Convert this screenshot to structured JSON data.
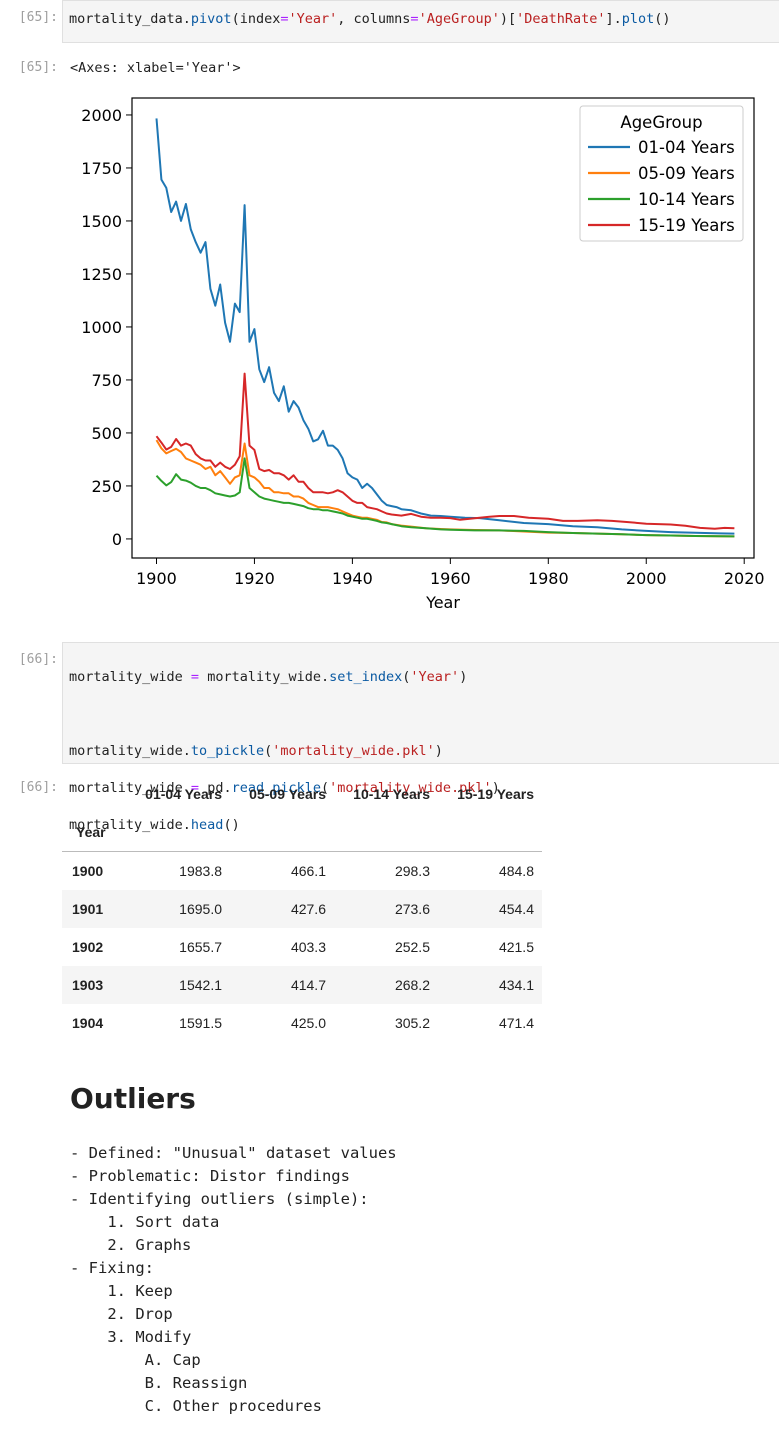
{
  "cells": [
    {
      "prompt": "[65]:",
      "out_prompt": "[65]:",
      "output_text": "<Axes: xlabel='Year'>"
    },
    {
      "prompt": "[66]:",
      "out_prompt": "[66]:"
    }
  ],
  "code65": {
    "a": "mortality_data.",
    "b": "pivot",
    "c": "(index",
    "d": "=",
    "e": "'Year'",
    "f": ", columns",
    "g": "=",
    "h": "'AgeGroup'",
    "i": ")[",
    "j": "'DeathRate'",
    "k": "].",
    "l": "plot",
    "m": "()"
  },
  "code66": {
    "l1a": "mortality_wide ",
    "l1b": "=",
    "l1c": " mortality_wide.",
    "l1d": "set_index",
    "l1e": "(",
    "l1f": "'Year'",
    "l1g": ")",
    "l2a": "mortality_wide.",
    "l2b": "to_pickle",
    "l2c": "(",
    "l2d": "'mortality_wide.pkl'",
    "l2e": ")",
    "l3a": "mortality_wide ",
    "l3b": "=",
    "l3c": " pd.",
    "l3d": "read_pickle",
    "l3e": "(",
    "l3f": "'mortality_wide.pkl'",
    "l3g": ")",
    "l4a": "mortality_wide.",
    "l4b": "head",
    "l4c": "()"
  },
  "colors": {
    "c1": "#1f77b4",
    "c2": "#ff7f0e",
    "c3": "#2ca02c",
    "c4": "#d62728"
  },
  "chart_data": {
    "type": "line",
    "title": "",
    "xlabel": "Year",
    "ylabel": "",
    "xlim": [
      1895,
      2022
    ],
    "ylim": [
      -90,
      2080
    ],
    "xticks": [
      1900,
      1920,
      1940,
      1960,
      1980,
      2000,
      2020
    ],
    "yticks": [
      0,
      250,
      500,
      750,
      1000,
      1250,
      1500,
      1750,
      2000
    ],
    "legend": {
      "title": "AgeGroup",
      "loc": "upper right"
    },
    "series": [
      {
        "name": "01-04 Years",
        "color": "#1f77b4",
        "points": [
          [
            1900,
            1983.8
          ],
          [
            1901,
            1695.0
          ],
          [
            1902,
            1655.7
          ],
          [
            1903,
            1542.1
          ],
          [
            1904,
            1591.5
          ],
          [
            1905,
            1500
          ],
          [
            1906,
            1580
          ],
          [
            1907,
            1460
          ],
          [
            1908,
            1400
          ],
          [
            1909,
            1350
          ],
          [
            1910,
            1400
          ],
          [
            1911,
            1180
          ],
          [
            1912,
            1100
          ],
          [
            1913,
            1200
          ],
          [
            1914,
            1020
          ],
          [
            1915,
            930
          ],
          [
            1916,
            1110
          ],
          [
            1917,
            1070
          ],
          [
            1918,
            1575
          ],
          [
            1919,
            930
          ],
          [
            1920,
            990
          ],
          [
            1921,
            800
          ],
          [
            1922,
            740
          ],
          [
            1923,
            810
          ],
          [
            1924,
            690
          ],
          [
            1925,
            650
          ],
          [
            1926,
            720
          ],
          [
            1927,
            600
          ],
          [
            1928,
            650
          ],
          [
            1929,
            620
          ],
          [
            1930,
            560
          ],
          [
            1931,
            520
          ],
          [
            1932,
            460
          ],
          [
            1933,
            470
          ],
          [
            1934,
            510
          ],
          [
            1935,
            440
          ],
          [
            1936,
            440
          ],
          [
            1937,
            420
          ],
          [
            1938,
            380
          ],
          [
            1939,
            310
          ],
          [
            1940,
            290
          ],
          [
            1941,
            280
          ],
          [
            1942,
            240
          ],
          [
            1943,
            260
          ],
          [
            1944,
            240
          ],
          [
            1945,
            210
          ],
          [
            1946,
            180
          ],
          [
            1947,
            160
          ],
          [
            1948,
            155
          ],
          [
            1949,
            150
          ],
          [
            1950,
            140
          ],
          [
            1952,
            135
          ],
          [
            1954,
            120
          ],
          [
            1956,
            110
          ],
          [
            1958,
            108
          ],
          [
            1960,
            105
          ],
          [
            1963,
            100
          ],
          [
            1966,
            98
          ],
          [
            1970,
            88
          ],
          [
            1975,
            75
          ],
          [
            1980,
            70
          ],
          [
            1985,
            60
          ],
          [
            1990,
            55
          ],
          [
            1995,
            45
          ],
          [
            2000,
            38
          ],
          [
            2005,
            32
          ],
          [
            2010,
            29
          ],
          [
            2015,
            26
          ],
          [
            2018,
            25
          ]
        ]
      },
      {
        "name": "05-09 Years",
        "color": "#ff7f0e",
        "points": [
          [
            1900,
            466.1
          ],
          [
            1901,
            427.6
          ],
          [
            1902,
            403.3
          ],
          [
            1903,
            414.7
          ],
          [
            1904,
            425.0
          ],
          [
            1905,
            410
          ],
          [
            1906,
            380
          ],
          [
            1907,
            370
          ],
          [
            1908,
            360
          ],
          [
            1909,
            350
          ],
          [
            1910,
            330
          ],
          [
            1911,
            340
          ],
          [
            1912,
            300
          ],
          [
            1913,
            320
          ],
          [
            1914,
            290
          ],
          [
            1915,
            260
          ],
          [
            1916,
            290
          ],
          [
            1917,
            300
          ],
          [
            1918,
            450
          ],
          [
            1919,
            300
          ],
          [
            1920,
            290
          ],
          [
            1921,
            270
          ],
          [
            1922,
            240
          ],
          [
            1923,
            240
          ],
          [
            1924,
            220
          ],
          [
            1925,
            220
          ],
          [
            1926,
            215
          ],
          [
            1927,
            215
          ],
          [
            1928,
            200
          ],
          [
            1929,
            200
          ],
          [
            1930,
            190
          ],
          [
            1931,
            170
          ],
          [
            1932,
            160
          ],
          [
            1933,
            150
          ],
          [
            1934,
            150
          ],
          [
            1935,
            150
          ],
          [
            1936,
            145
          ],
          [
            1937,
            140
          ],
          [
            1938,
            130
          ],
          [
            1939,
            120
          ],
          [
            1940,
            110
          ],
          [
            1941,
            105
          ],
          [
            1942,
            100
          ],
          [
            1943,
            100
          ],
          [
            1944,
            95
          ],
          [
            1945,
            90
          ],
          [
            1946,
            80
          ],
          [
            1947,
            78
          ],
          [
            1948,
            70
          ],
          [
            1950,
            63
          ],
          [
            1952,
            58
          ],
          [
            1955,
            50
          ],
          [
            1958,
            47
          ],
          [
            1960,
            45
          ],
          [
            1965,
            42
          ],
          [
            1970,
            40
          ],
          [
            1975,
            35
          ],
          [
            1980,
            30
          ],
          [
            1985,
            28
          ],
          [
            1990,
            25
          ],
          [
            1995,
            22
          ],
          [
            2000,
            18
          ],
          [
            2005,
            16
          ],
          [
            2010,
            14
          ],
          [
            2015,
            13
          ],
          [
            2018,
            12
          ]
        ]
      },
      {
        "name": "10-14 Years",
        "color": "#2ca02c",
        "points": [
          [
            1900,
            298.3
          ],
          [
            1901,
            273.6
          ],
          [
            1902,
            252.5
          ],
          [
            1903,
            268.2
          ],
          [
            1904,
            305.2
          ],
          [
            1905,
            280
          ],
          [
            1906,
            275
          ],
          [
            1907,
            265
          ],
          [
            1908,
            250
          ],
          [
            1909,
            240
          ],
          [
            1910,
            240
          ],
          [
            1911,
            230
          ],
          [
            1912,
            215
          ],
          [
            1913,
            210
          ],
          [
            1914,
            205
          ],
          [
            1915,
            200
          ],
          [
            1916,
            205
          ],
          [
            1917,
            220
          ],
          [
            1918,
            380
          ],
          [
            1919,
            240
          ],
          [
            1920,
            220
          ],
          [
            1921,
            200
          ],
          [
            1922,
            190
          ],
          [
            1923,
            185
          ],
          [
            1924,
            180
          ],
          [
            1925,
            175
          ],
          [
            1926,
            170
          ],
          [
            1927,
            170
          ],
          [
            1928,
            165
          ],
          [
            1929,
            160
          ],
          [
            1930,
            155
          ],
          [
            1931,
            145
          ],
          [
            1932,
            140
          ],
          [
            1933,
            140
          ],
          [
            1934,
            135
          ],
          [
            1935,
            135
          ],
          [
            1936,
            130
          ],
          [
            1937,
            125
          ],
          [
            1938,
            120
          ],
          [
            1939,
            110
          ],
          [
            1940,
            105
          ],
          [
            1941,
            100
          ],
          [
            1942,
            95
          ],
          [
            1943,
            95
          ],
          [
            1944,
            90
          ],
          [
            1945,
            85
          ],
          [
            1946,
            78
          ],
          [
            1947,
            75
          ],
          [
            1948,
            70
          ],
          [
            1950,
            60
          ],
          [
            1952,
            55
          ],
          [
            1955,
            50
          ],
          [
            1958,
            45
          ],
          [
            1960,
            43
          ],
          [
            1965,
            40
          ],
          [
            1970,
            40
          ],
          [
            1975,
            38
          ],
          [
            1980,
            32
          ],
          [
            1985,
            28
          ],
          [
            1990,
            25
          ],
          [
            1995,
            22
          ],
          [
            2000,
            18
          ],
          [
            2005,
            16
          ],
          [
            2010,
            14
          ],
          [
            2015,
            13
          ],
          [
            2018,
            12
          ]
        ]
      },
      {
        "name": "15-19 Years",
        "color": "#d62728",
        "points": [
          [
            1900,
            484.8
          ],
          [
            1901,
            454.4
          ],
          [
            1902,
            421.5
          ],
          [
            1903,
            434.1
          ],
          [
            1904,
            471.4
          ],
          [
            1905,
            440
          ],
          [
            1906,
            450
          ],
          [
            1907,
            440
          ],
          [
            1908,
            400
          ],
          [
            1909,
            380
          ],
          [
            1910,
            370
          ],
          [
            1911,
            370
          ],
          [
            1912,
            340
          ],
          [
            1913,
            360
          ],
          [
            1914,
            340
          ],
          [
            1915,
            330
          ],
          [
            1916,
            350
          ],
          [
            1917,
            390
          ],
          [
            1918,
            780
          ],
          [
            1919,
            440
          ],
          [
            1920,
            420
          ],
          [
            1921,
            330
          ],
          [
            1922,
            320
          ],
          [
            1923,
            325
          ],
          [
            1924,
            310
          ],
          [
            1925,
            310
          ],
          [
            1926,
            300
          ],
          [
            1927,
            280
          ],
          [
            1928,
            300
          ],
          [
            1929,
            270
          ],
          [
            1930,
            270
          ],
          [
            1931,
            240
          ],
          [
            1932,
            220
          ],
          [
            1933,
            220
          ],
          [
            1934,
            220
          ],
          [
            1935,
            215
          ],
          [
            1936,
            220
          ],
          [
            1937,
            230
          ],
          [
            1938,
            220
          ],
          [
            1939,
            200
          ],
          [
            1940,
            180
          ],
          [
            1941,
            170
          ],
          [
            1942,
            170
          ],
          [
            1943,
            150
          ],
          [
            1944,
            145
          ],
          [
            1945,
            140
          ],
          [
            1946,
            130
          ],
          [
            1947,
            120
          ],
          [
            1948,
            115
          ],
          [
            1950,
            110
          ],
          [
            1952,
            118
          ],
          [
            1954,
            105
          ],
          [
            1956,
            100
          ],
          [
            1958,
            100
          ],
          [
            1960,
            98
          ],
          [
            1962,
            90
          ],
          [
            1964,
            95
          ],
          [
            1966,
            100
          ],
          [
            1968,
            105
          ],
          [
            1970,
            108
          ],
          [
            1973,
            108
          ],
          [
            1976,
            100
          ],
          [
            1980,
            95
          ],
          [
            1983,
            85
          ],
          [
            1986,
            85
          ],
          [
            1990,
            88
          ],
          [
            1993,
            85
          ],
          [
            1996,
            80
          ],
          [
            2000,
            72
          ],
          [
            2005,
            68
          ],
          [
            2008,
            62
          ],
          [
            2011,
            52
          ],
          [
            2014,
            48
          ],
          [
            2016,
            52
          ],
          [
            2018,
            50
          ]
        ]
      }
    ]
  },
  "table": {
    "index_name": "Year",
    "columns": [
      "01-04 Years",
      "05-09 Years",
      "10-14 Years",
      "15-19 Years"
    ],
    "rows": [
      {
        "year": "1900",
        "values": [
          "1983.8",
          "466.1",
          "298.3",
          "484.8"
        ]
      },
      {
        "year": "1901",
        "values": [
          "1695.0",
          "427.6",
          "273.6",
          "454.4"
        ]
      },
      {
        "year": "1902",
        "values": [
          "1655.7",
          "403.3",
          "252.5",
          "421.5"
        ]
      },
      {
        "year": "1903",
        "values": [
          "1542.1",
          "414.7",
          "268.2",
          "434.1"
        ]
      },
      {
        "year": "1904",
        "values": [
          "1591.5",
          "425.0",
          "305.2",
          "471.4"
        ]
      }
    ]
  },
  "markdown": {
    "heading": "Outliers",
    "lines": [
      "- Defined: \"Unusual\" dataset values",
      "- Problematic: Distor findings",
      "- Identifying outliers (simple):",
      "    1. Sort data",
      "    2. Graphs",
      "- Fixing:",
      "    1. Keep",
      "    2. Drop",
      "    3. Modify",
      "        A. Cap",
      "        B. Reassign",
      "        C. Other procedures"
    ]
  }
}
